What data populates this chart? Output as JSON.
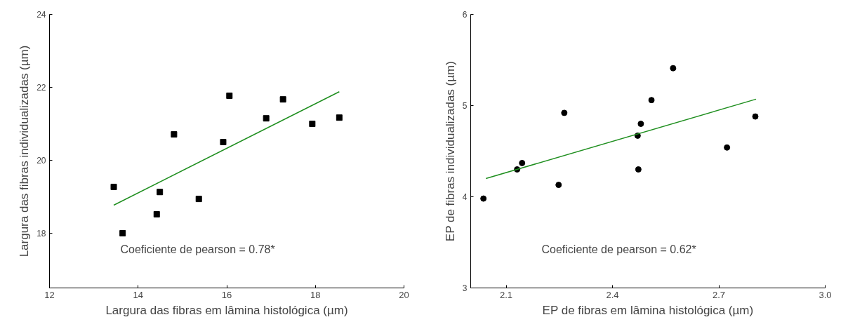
{
  "chart_data": [
    {
      "type": "scatter",
      "xlabel": "Largura das fibras em lâmina histológica (µm)",
      "ylabel": "Largura das fibras individualizadas (µm)",
      "xlim": [
        12,
        20
      ],
      "xticks": [
        12,
        14,
        16,
        18,
        20
      ],
      "ylim": [
        16.5,
        24
      ],
      "yticks": [
        18,
        20,
        22,
        24
      ],
      "grid": false,
      "annotations": [
        "Coeficiente de pearson = 0.78*"
      ],
      "series": [
        {
          "marker": "square",
          "color": "#000000",
          "x": [
            13.45,
            13.65,
            14.42,
            14.49,
            14.81,
            15.37,
            15.92,
            16.06,
            16.89,
            17.27,
            17.93,
            18.54
          ],
          "values": [
            19.27,
            18.0,
            18.52,
            19.13,
            20.71,
            18.94,
            20.5,
            21.77,
            21.15,
            21.67,
            21.0,
            21.17
          ]
        },
        {
          "type": "line",
          "color": "#1f8f1f",
          "x": [
            13.45,
            18.54
          ],
          "values": [
            18.77,
            21.88
          ]
        }
      ]
    },
    {
      "type": "scatter",
      "xlabel": "EP de fibras em lâmina histológica (µm)",
      "ylabel": "EP de fibras individualizadas (µm)",
      "xlim": [
        2.0,
        3.0
      ],
      "xticks": [
        {
          "value": 2.1,
          "label": "2.1"
        },
        {
          "value": 2.4,
          "label": "2.4"
        },
        {
          "value": 2.7,
          "label": "2.7"
        },
        {
          "value": 3.0,
          "label": "3.0"
        }
      ],
      "ylim": [
        3,
        6
      ],
      "yticks": [
        3,
        4,
        5,
        6
      ],
      "grid": false,
      "annotations": [
        "Coeficiente de pearson = 0.62*"
      ],
      "series": [
        {
          "marker": "circle",
          "color": "#000000",
          "x": [
            2.036,
            2.131,
            2.145,
            2.248,
            2.264,
            2.471,
            2.473,
            2.48,
            2.51,
            2.571,
            2.723,
            2.803
          ],
          "values": [
            3.98,
            4.3,
            4.37,
            4.13,
            4.92,
            4.67,
            4.3,
            4.8,
            5.06,
            5.41,
            4.54,
            4.88
          ]
        },
        {
          "type": "line",
          "color": "#1f8f1f",
          "x": [
            2.043,
            2.805
          ],
          "values": [
            4.2,
            5.07
          ]
        }
      ]
    }
  ]
}
